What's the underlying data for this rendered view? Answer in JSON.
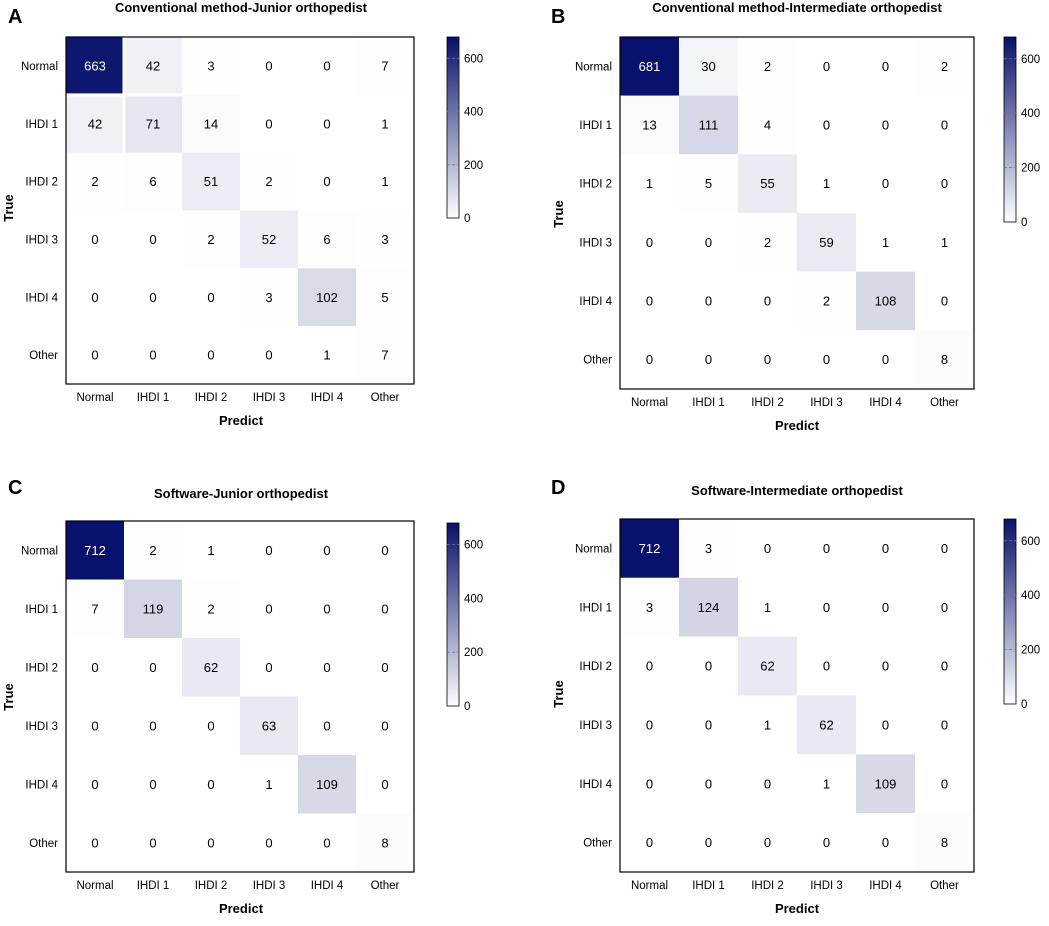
{
  "chart_data": [
    {
      "type": "heatmap",
      "panel": "A",
      "title": "Conventional method-Junior orthopedist",
      "xlabel": "Predict",
      "ylabel": "True",
      "x_categories": [
        "Normal",
        "IHDI 1",
        "IHDI 2",
        "IHDI 3",
        "IHDI 4",
        "Other"
      ],
      "y_categories": [
        "Normal",
        "IHDI 1",
        "IHDI 2",
        "IHDI 3",
        "IHDI 4",
        "Other"
      ],
      "matrix": [
        [
          663,
          42,
          3,
          0,
          0,
          7
        ],
        [
          42,
          71,
          14,
          0,
          0,
          1
        ],
        [
          2,
          6,
          51,
          2,
          0,
          1
        ],
        [
          0,
          0,
          2,
          52,
          6,
          3
        ],
        [
          0,
          0,
          0,
          3,
          102,
          5
        ],
        [
          0,
          0,
          0,
          0,
          1,
          7
        ]
      ],
      "colorbar": {
        "min": 0,
        "max": 663,
        "ticks": [
          "0",
          "200",
          "400",
          "600"
        ]
      }
    },
    {
      "type": "heatmap",
      "panel": "B",
      "title": "Conventional method-Intermediate orthopedist",
      "xlabel": "Predict",
      "ylabel": "True",
      "x_categories": [
        "Normal",
        "IHDI 1",
        "IHDI 2",
        "IHDI 3",
        "IHDI 4",
        "Other"
      ],
      "y_categories": [
        "Normal",
        "IHDI 1",
        "IHDI 2",
        "IHDI 3",
        "IHDI 4",
        "Other"
      ],
      "matrix": [
        [
          681,
          30,
          2,
          0,
          0,
          2
        ],
        [
          13,
          111,
          4,
          0,
          0,
          0
        ],
        [
          1,
          5,
          55,
          1,
          0,
          0
        ],
        [
          0,
          0,
          2,
          59,
          1,
          1
        ],
        [
          0,
          0,
          0,
          2,
          108,
          0
        ],
        [
          0,
          0,
          0,
          0,
          0,
          8
        ]
      ],
      "colorbar": {
        "min": 0,
        "max": 681,
        "ticks": [
          "0",
          "200",
          "400",
          "600"
        ]
      }
    },
    {
      "type": "heatmap",
      "panel": "C",
      "title": "Software-Junior orthopedist",
      "xlabel": "Predict",
      "ylabel": "True",
      "x_categories": [
        "Normal",
        "IHDI 1",
        "IHDI 2",
        "IHDI 3",
        "IHDI 4",
        "Other"
      ],
      "y_categories": [
        "Normal",
        "IHDI 1",
        "IHDI 2",
        "IHDI 3",
        "IHDI 4",
        "Other"
      ],
      "matrix": [
        [
          712,
          2,
          1,
          0,
          0,
          0
        ],
        [
          7,
          119,
          2,
          0,
          0,
          0
        ],
        [
          0,
          0,
          62,
          0,
          0,
          0
        ],
        [
          0,
          0,
          0,
          63,
          0,
          0
        ],
        [
          0,
          0,
          0,
          1,
          109,
          0
        ],
        [
          0,
          0,
          0,
          0,
          0,
          8
        ]
      ],
      "colorbar": {
        "min": 0,
        "max": 712,
        "ticks": [
          "0",
          "200",
          "400",
          "600"
        ]
      }
    },
    {
      "type": "heatmap",
      "panel": "D",
      "title": "Software-Intermediate orthopedist",
      "xlabel": "Predict",
      "ylabel": "True",
      "x_categories": [
        "Normal",
        "IHDI 1",
        "IHDI 2",
        "IHDI 3",
        "IHDI 4",
        "Other"
      ],
      "y_categories": [
        "Normal",
        "IHDI 1",
        "IHDI 2",
        "IHDI 3",
        "IHDI 4",
        "Other"
      ],
      "matrix": [
        [
          712,
          3,
          0,
          0,
          0,
          0
        ],
        [
          3,
          124,
          1,
          0,
          0,
          0
        ],
        [
          0,
          0,
          62,
          0,
          0,
          0
        ],
        [
          0,
          0,
          1,
          62,
          0,
          0
        ],
        [
          0,
          0,
          0,
          1,
          109,
          0
        ],
        [
          0,
          0,
          0,
          0,
          0,
          8
        ]
      ],
      "colorbar": {
        "min": 0,
        "max": 712,
        "ticks": [
          "0",
          "200",
          "400",
          "600"
        ]
      }
    }
  ],
  "colors": {
    "low": "#ffffff",
    "high": "#08116b",
    "text_dark": "#000000",
    "text_light": "#ffffff"
  }
}
